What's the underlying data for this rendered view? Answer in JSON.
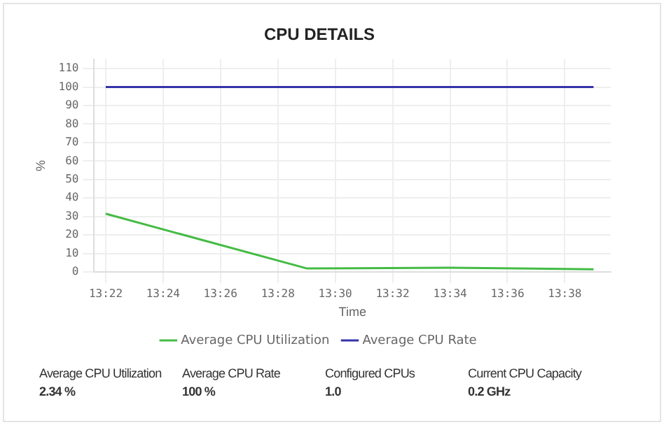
{
  "chart_data": {
    "type": "line",
    "title": "CPU DETAILS",
    "xlabel": "Time",
    "ylabel": "%",
    "x": [
      13.3667,
      13.4833,
      13.5667,
      13.65
    ],
    "series": [
      {
        "name": "Average CPU Utilization",
        "color": "#44bb44",
        "values": [
          31.5,
          2,
          2.3,
          1.5
        ]
      },
      {
        "name": "Average CPU Rate",
        "color": "#3333aa",
        "values": [
          100,
          100,
          100,
          100
        ]
      }
    ],
    "xlim": [
      13.36,
      13.66
    ],
    "xticks": [
      {
        "value": 13.3667,
        "label": "13:22"
      },
      {
        "value": 13.4,
        "label": "13:24"
      },
      {
        "value": 13.4333,
        "label": "13:26"
      },
      {
        "value": 13.4667,
        "label": "13:28"
      },
      {
        "value": 13.5,
        "label": "13:30"
      },
      {
        "value": 13.5333,
        "label": "13:32"
      },
      {
        "value": 13.5667,
        "label": "13:34"
      },
      {
        "value": 13.6,
        "label": "13:36"
      },
      {
        "value": 13.6333,
        "label": "13:38"
      }
    ],
    "ylim": [
      0,
      115
    ],
    "yticks": [
      0,
      10,
      20,
      30,
      40,
      50,
      60,
      70,
      80,
      90,
      100,
      110
    ],
    "grid": true,
    "legend": "bottom",
    "marker": "none",
    "line_style": "solid",
    "annotations": [
      "Average CPU Utilization",
      "2.34 %",
      "Average CPU Rate",
      "100 %",
      "Configured CPUs",
      "1.0",
      "Current CPU Capacity",
      "0.2 GHz"
    ]
  }
}
